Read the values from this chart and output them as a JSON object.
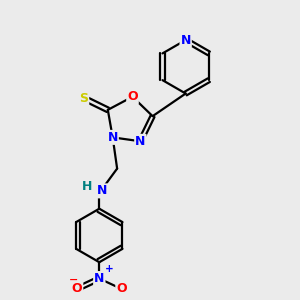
{
  "background_color": "#ebebeb",
  "atom_colors": {
    "C": "#000000",
    "N": "#0000ff",
    "O": "#ff0000",
    "S": "#cccc00",
    "H": "#008080"
  },
  "figsize": [
    3.0,
    3.0
  ],
  "dpi": 100
}
